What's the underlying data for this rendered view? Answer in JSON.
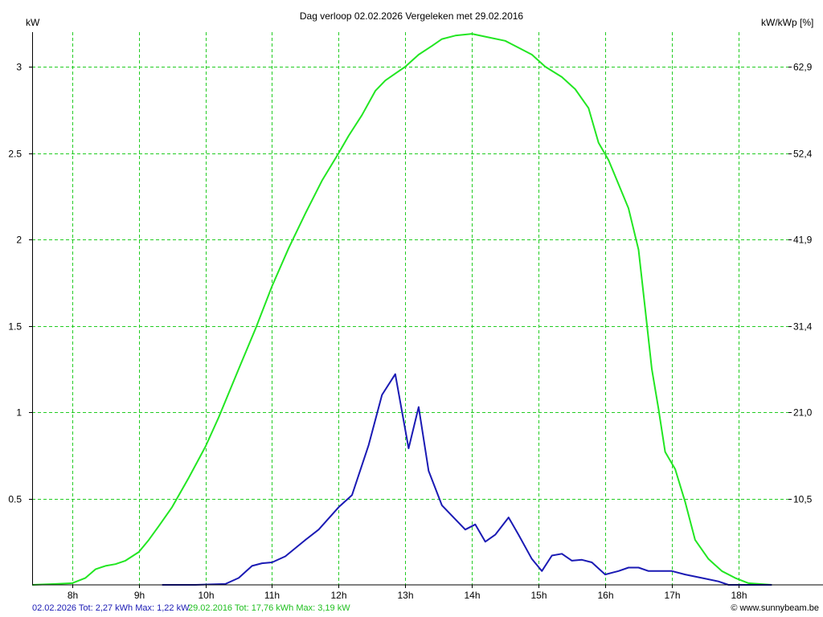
{
  "chart_data": {
    "type": "line",
    "title": "Dag  verloop 02.02.2026   Vergeleken met 29.02.2016",
    "ylabel": "kW",
    "ylabel_right": "kW/kWp [%]",
    "ylim": [
      0,
      3.2
    ],
    "xlim": [
      7.4,
      18.75
    ],
    "grid": true,
    "yticks": [
      {
        "value": 0.5,
        "label": "0.5"
      },
      {
        "value": 1,
        "label": "1"
      },
      {
        "value": 1.5,
        "label": "1.5"
      },
      {
        "value": 2,
        "label": "2"
      },
      {
        "value": 2.5,
        "label": "2.5"
      },
      {
        "value": 3,
        "label": "3"
      }
    ],
    "yticks_right": [
      {
        "value": 0.5,
        "label": "10,5"
      },
      {
        "value": 1,
        "label": "21,0"
      },
      {
        "value": 1.5,
        "label": "31,4"
      },
      {
        "value": 2,
        "label": "41,9"
      },
      {
        "value": 2.5,
        "label": "52,4"
      },
      {
        "value": 3,
        "label": "62,9"
      }
    ],
    "xticks": [
      {
        "value": 8,
        "label": "8h"
      },
      {
        "value": 9,
        "label": "9h"
      },
      {
        "value": 10,
        "label": "10h"
      },
      {
        "value": 11,
        "label": "11h"
      },
      {
        "value": 12,
        "label": "12h"
      },
      {
        "value": 13,
        "label": "13h"
      },
      {
        "value": 14,
        "label": "14h"
      },
      {
        "value": 15,
        "label": "15h"
      },
      {
        "value": 16,
        "label": "16h"
      },
      {
        "value": 17,
        "label": "17h"
      },
      {
        "value": 18,
        "label": "18h"
      }
    ],
    "series": [
      {
        "name": "29.02.2016",
        "color": "#22e622",
        "points": [
          [
            7.4,
            0
          ],
          [
            7.75,
            0.005
          ],
          [
            8.0,
            0.01
          ],
          [
            8.2,
            0.04
          ],
          [
            8.35,
            0.09
          ],
          [
            8.5,
            0.11
          ],
          [
            8.65,
            0.12
          ],
          [
            8.8,
            0.14
          ],
          [
            9.0,
            0.19
          ],
          [
            9.15,
            0.26
          ],
          [
            9.3,
            0.34
          ],
          [
            9.5,
            0.45
          ],
          [
            9.75,
            0.62
          ],
          [
            10.0,
            0.8
          ],
          [
            10.2,
            0.97
          ],
          [
            10.5,
            1.25
          ],
          [
            10.75,
            1.48
          ],
          [
            11.0,
            1.73
          ],
          [
            11.25,
            1.95
          ],
          [
            11.5,
            2.15
          ],
          [
            11.75,
            2.34
          ],
          [
            12.0,
            2.5
          ],
          [
            12.15,
            2.6
          ],
          [
            12.35,
            2.72
          ],
          [
            12.55,
            2.86
          ],
          [
            12.7,
            2.92
          ],
          [
            12.85,
            2.96
          ],
          [
            13.0,
            3.0
          ],
          [
            13.2,
            3.07
          ],
          [
            13.4,
            3.12
          ],
          [
            13.55,
            3.16
          ],
          [
            13.75,
            3.18
          ],
          [
            14.0,
            3.19
          ],
          [
            14.25,
            3.17
          ],
          [
            14.5,
            3.15
          ],
          [
            14.7,
            3.11
          ],
          [
            14.9,
            3.07
          ],
          [
            15.1,
            3.0
          ],
          [
            15.35,
            2.94
          ],
          [
            15.55,
            2.87
          ],
          [
            15.75,
            2.76
          ],
          [
            15.9,
            2.56
          ],
          [
            16.05,
            2.46
          ],
          [
            16.2,
            2.32
          ],
          [
            16.35,
            2.18
          ],
          [
            16.5,
            1.94
          ],
          [
            16.6,
            1.6
          ],
          [
            16.7,
            1.25
          ],
          [
            16.8,
            1.02
          ],
          [
            16.9,
            0.77
          ],
          [
            17.05,
            0.67
          ],
          [
            17.2,
            0.48
          ],
          [
            17.35,
            0.26
          ],
          [
            17.55,
            0.15
          ],
          [
            17.75,
            0.08
          ],
          [
            17.95,
            0.04
          ],
          [
            18.15,
            0.01
          ],
          [
            18.5,
            0.0
          ]
        ]
      },
      {
        "name": "02.02.2026",
        "color": "#1a1ab4",
        "points": [
          [
            9.35,
            0
          ],
          [
            9.85,
            0
          ],
          [
            10.3,
            0.005
          ],
          [
            10.5,
            0.04
          ],
          [
            10.7,
            0.11
          ],
          [
            10.85,
            0.125
          ],
          [
            11.0,
            0.13
          ],
          [
            11.2,
            0.165
          ],
          [
            11.5,
            0.26
          ],
          [
            11.7,
            0.32
          ],
          [
            12.0,
            0.45
          ],
          [
            12.2,
            0.52
          ],
          [
            12.45,
            0.81
          ],
          [
            12.65,
            1.1
          ],
          [
            12.85,
            1.22
          ],
          [
            13.05,
            0.79
          ],
          [
            13.2,
            1.03
          ],
          [
            13.35,
            0.66
          ],
          [
            13.55,
            0.46
          ],
          [
            13.75,
            0.38
          ],
          [
            13.9,
            0.32
          ],
          [
            14.05,
            0.35
          ],
          [
            14.2,
            0.25
          ],
          [
            14.35,
            0.29
          ],
          [
            14.55,
            0.39
          ],
          [
            14.7,
            0.29
          ],
          [
            14.9,
            0.15
          ],
          [
            15.05,
            0.08
          ],
          [
            15.2,
            0.17
          ],
          [
            15.35,
            0.18
          ],
          [
            15.5,
            0.14
          ],
          [
            15.65,
            0.145
          ],
          [
            15.8,
            0.13
          ],
          [
            16.0,
            0.06
          ],
          [
            16.2,
            0.08
          ],
          [
            16.35,
            0.1
          ],
          [
            16.5,
            0.1
          ],
          [
            16.65,
            0.08
          ],
          [
            16.85,
            0.08
          ],
          [
            17.0,
            0.08
          ],
          [
            17.2,
            0.06
          ],
          [
            17.45,
            0.04
          ],
          [
            17.7,
            0.02
          ],
          [
            17.85,
            0.0
          ],
          [
            18.5,
            0.0
          ]
        ]
      }
    ]
  },
  "footer": {
    "summary_blue": "02.02.2026 Tot: 2,27 kWh Max: 1,22 kW",
    "summary_green": "29.02.2016 Tot: 17,76 kWh Max: 3,19 kW",
    "copyright": "© www.sunnybeam.be"
  },
  "colors": {
    "grid": "#22cc22",
    "axis": "#000000",
    "blue": "#1a1ab4",
    "green": "#22e622"
  }
}
